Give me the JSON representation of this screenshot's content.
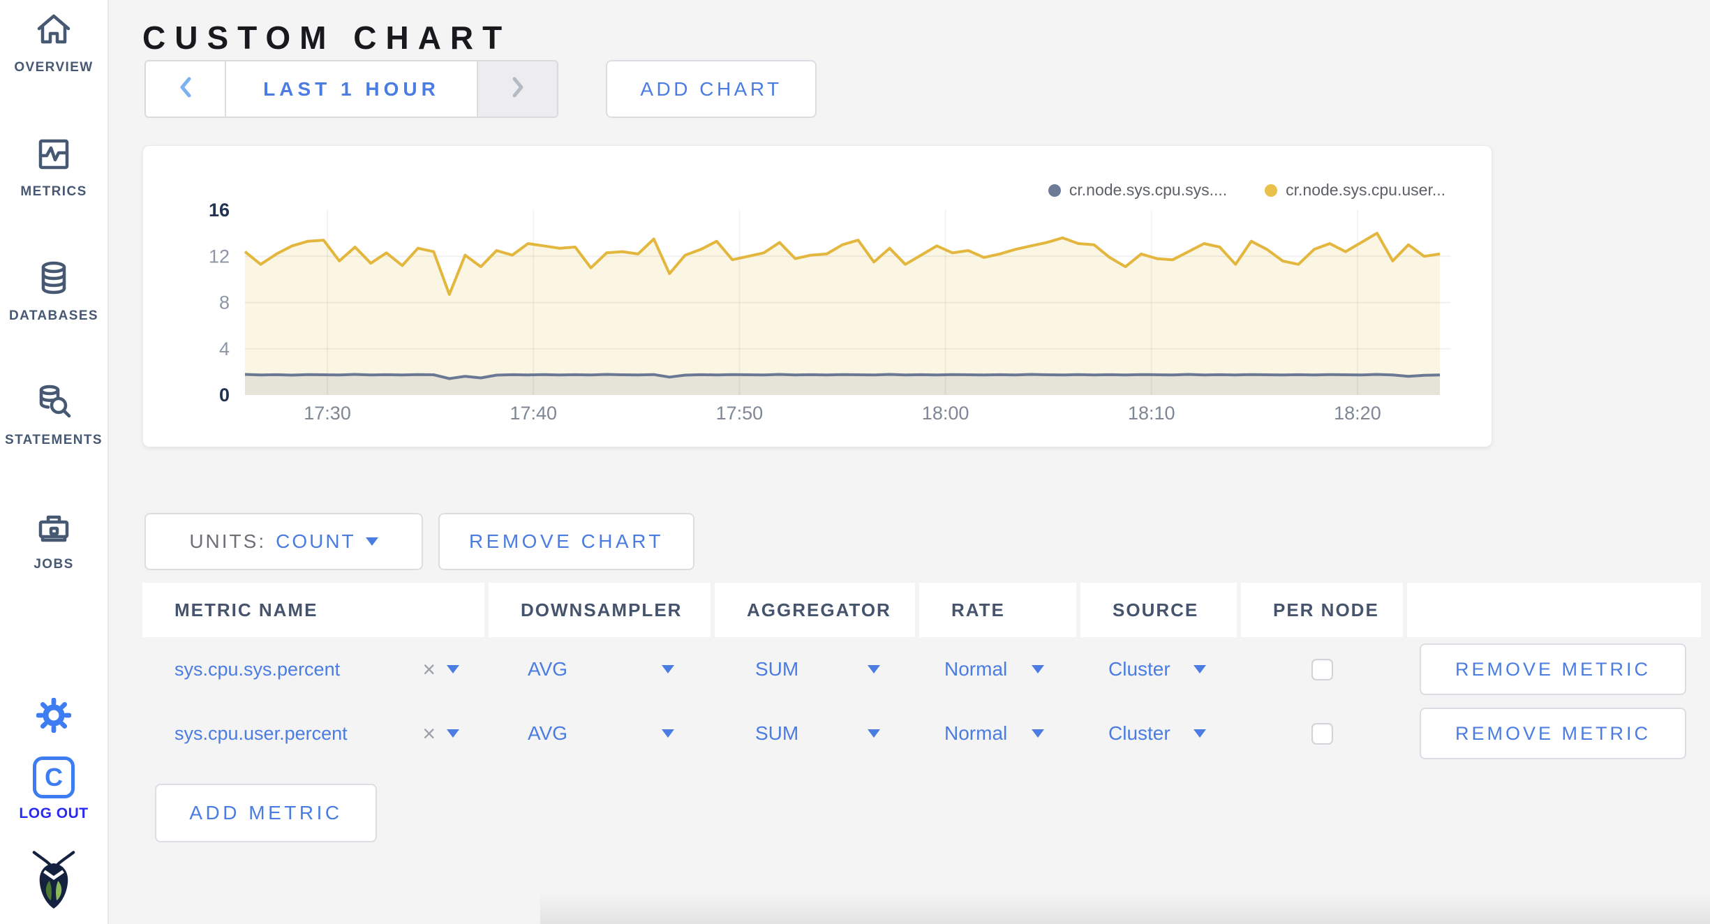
{
  "theme": {
    "page_bg": "#f4f4f5",
    "accent": "#4a7ce2",
    "sidebar_text": "#475872",
    "logout_blue": "#2a2af0",
    "icon_blue": "#3e7cf2",
    "series_sys_color": "#6c7b96",
    "series_user_color": "#e8c04a"
  },
  "sidebar": {
    "items": [
      {
        "label": "OVERVIEW",
        "icon": "home-icon"
      },
      {
        "label": "METRICS",
        "icon": "metrics-graph-icon"
      },
      {
        "label": "DATABASES",
        "icon": "database-icon"
      },
      {
        "label": "STATEMENTS",
        "icon": "database-search-icon"
      },
      {
        "label": "JOBS",
        "icon": "briefcase-icon"
      }
    ],
    "settings_icon": "gear-icon",
    "logout_label": "LOG OUT",
    "logout_icon": "cockroach-c-icon",
    "logo_icon": "cockroachdb-bug-icon"
  },
  "page": {
    "title": "CUSTOM CHART"
  },
  "toolbar": {
    "prev_icon": "chevron-left-icon",
    "range_label": "LAST 1 HOUR",
    "next_icon": "chevron-right-icon",
    "next_disabled": true,
    "add_chart_label": "ADD CHART"
  },
  "chart": {
    "legend": [
      {
        "label": "cr.node.sys.cpu.sys....",
        "color": "#6c7b96"
      },
      {
        "label": "cr.node.sys.cpu.user...",
        "color": "#e8c04a"
      }
    ]
  },
  "chart_data": {
    "type": "area",
    "title": "",
    "xlabel": "",
    "ylabel": "",
    "ylim": [
      0,
      16
    ],
    "y_ticks": [
      0,
      4,
      8,
      12,
      16
    ],
    "x_range": [
      "17:26",
      "18:24"
    ],
    "x_ticks": [
      "17:30",
      "17:40",
      "17:50",
      "18:00",
      "18:10",
      "18:20"
    ],
    "grid": true,
    "legend_position": "top-right",
    "series": [
      {
        "name": "cr.node.sys.cpu.sys....",
        "color": "#6b7893",
        "fill": "rgba(107,120,147,0.14)",
        "values": [
          1.78,
          1.74,
          1.76,
          1.72,
          1.77,
          1.75,
          1.73,
          1.78,
          1.74,
          1.76,
          1.73,
          1.77,
          1.75,
          1.42,
          1.62,
          1.48,
          1.72,
          1.76,
          1.74,
          1.77,
          1.73,
          1.76,
          1.74,
          1.78,
          1.75,
          1.73,
          1.77,
          1.55,
          1.72,
          1.76,
          1.74,
          1.77,
          1.75,
          1.73,
          1.78,
          1.74,
          1.76,
          1.73,
          1.77,
          1.75,
          1.74,
          1.78,
          1.73,
          1.76,
          1.74,
          1.77,
          1.75,
          1.73,
          1.76,
          1.74,
          1.78,
          1.75,
          1.73,
          1.77,
          1.74,
          1.76,
          1.73,
          1.77,
          1.75,
          1.74,
          1.78,
          1.73,
          1.76,
          1.74,
          1.77,
          1.75,
          1.73,
          1.76,
          1.74,
          1.77,
          1.75,
          1.73,
          1.78,
          1.74,
          1.62,
          1.7,
          1.74
        ]
      },
      {
        "name": "cr.node.sys.cpu.user...",
        "color": "#e3b73e",
        "fill": "rgba(229,186,65,0.15)",
        "values": [
          12.4,
          11.3,
          12.2,
          12.9,
          13.3,
          13.4,
          11.6,
          12.8,
          11.4,
          12.3,
          11.2,
          12.7,
          12.4,
          8.7,
          12.1,
          11.1,
          12.5,
          12.1,
          13.1,
          12.9,
          12.7,
          12.8,
          11.0,
          12.3,
          12.4,
          12.2,
          13.5,
          10.5,
          12.1,
          12.6,
          13.3,
          11.7,
          12.0,
          12.3,
          13.2,
          11.8,
          12.1,
          12.2,
          13.0,
          13.4,
          11.5,
          12.7,
          11.3,
          12.1,
          12.9,
          12.3,
          12.5,
          11.9,
          12.2,
          12.6,
          12.9,
          13.2,
          13.6,
          13.1,
          13.0,
          11.9,
          11.1,
          12.2,
          11.8,
          11.7,
          12.4,
          13.1,
          12.8,
          11.3,
          13.3,
          12.6,
          11.6,
          11.3,
          12.6,
          13.1,
          12.4,
          13.2,
          14.0,
          11.6,
          13.0,
          12.0,
          12.2
        ]
      }
    ]
  },
  "chart_controls": {
    "units_label": "UNITS:",
    "units_value": "COUNT",
    "remove_chart_label": "REMOVE CHART"
  },
  "metrics_table": {
    "columns": [
      "METRIC NAME",
      "DOWNSAMPLER",
      "AGGREGATOR",
      "RATE",
      "SOURCE",
      "PER NODE"
    ],
    "clear_icon": "×",
    "rows": [
      {
        "metric_name": "sys.cpu.sys.percent",
        "downsampler": "AVG",
        "aggregator": "SUM",
        "rate": "Normal",
        "source": "Cluster",
        "per_node": false,
        "remove_label": "REMOVE METRIC"
      },
      {
        "metric_name": "sys.cpu.user.percent",
        "downsampler": "AVG",
        "aggregator": "SUM",
        "rate": "Normal",
        "source": "Cluster",
        "per_node": false,
        "remove_label": "REMOVE METRIC"
      }
    ],
    "add_metric_label": "ADD METRIC"
  }
}
